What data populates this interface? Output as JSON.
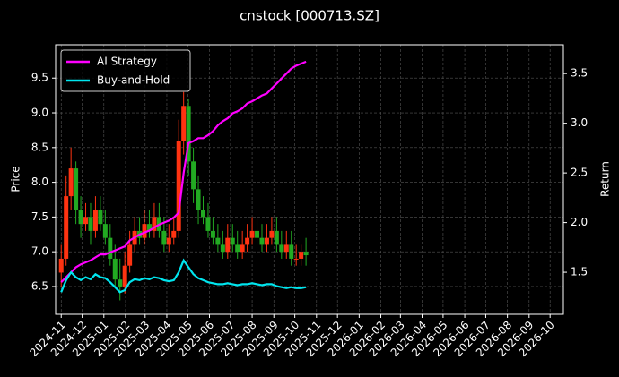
{
  "chart_data": {
    "type": "candlestick",
    "title": "cnstock [000713.SZ]",
    "ylabel": "Price",
    "y2label": "Return",
    "x": [
      "2024-11-01",
      "2024-11-08",
      "2024-11-15",
      "2024-11-22",
      "2024-11-29",
      "2024-12-06",
      "2024-12-13",
      "2024-12-20",
      "2024-12-27",
      "2025-01-03",
      "2025-01-10",
      "2025-01-17",
      "2025-01-24",
      "2025-01-31",
      "2025-02-07",
      "2025-02-14",
      "2025-02-21",
      "2025-02-28",
      "2025-03-07",
      "2025-03-14",
      "2025-03-21",
      "2025-03-28",
      "2025-04-04",
      "2025-04-11",
      "2025-04-18",
      "2025-04-25",
      "2025-05-02",
      "2025-05-09",
      "2025-05-16",
      "2025-05-23",
      "2025-05-30",
      "2025-06-06",
      "2025-06-13",
      "2025-06-20",
      "2025-06-27",
      "2025-07-04",
      "2025-07-11",
      "2025-07-18",
      "2025-07-25",
      "2025-08-01",
      "2025-08-08",
      "2025-08-15",
      "2025-08-22",
      "2025-08-29",
      "2025-09-05",
      "2025-09-12",
      "2025-09-19",
      "2025-09-26",
      "2025-10-03",
      "2025-10-10",
      "2025-10-17"
    ],
    "open": [
      6.7,
      6.9,
      7.8,
      8.2,
      7.6,
      7.4,
      7.5,
      7.3,
      7.6,
      7.4,
      7.2,
      6.9,
      6.6,
      6.5,
      6.8,
      7.1,
      7.3,
      7.2,
      7.4,
      7.3,
      7.5,
      7.3,
      7.1,
      7.2,
      7.3,
      8.6,
      9.1,
      8.3,
      7.9,
      7.6,
      7.5,
      7.3,
      7.2,
      7.1,
      7.0,
      7.2,
      7.1,
      7.0,
      7.1,
      7.2,
      7.3,
      7.2,
      7.1,
      7.2,
      7.3,
      7.1,
      7.0,
      7.1,
      6.9,
      6.9,
      7.0
    ],
    "high": [
      7.1,
      8.1,
      8.5,
      8.3,
      7.8,
      7.7,
      7.7,
      7.8,
      7.8,
      7.6,
      7.4,
      7.1,
      6.9,
      7.0,
      7.3,
      7.5,
      7.5,
      7.6,
      7.6,
      7.7,
      7.7,
      7.5,
      7.4,
      7.5,
      8.9,
      9.3,
      9.2,
      8.5,
      8.1,
      7.8,
      7.7,
      7.5,
      7.4,
      7.3,
      7.4,
      7.4,
      7.3,
      7.3,
      7.4,
      7.5,
      7.5,
      7.4,
      7.4,
      7.5,
      7.5,
      7.3,
      7.3,
      7.3,
      7.1,
      7.1,
      7.2
    ],
    "low": [
      6.5,
      6.8,
      7.6,
      7.4,
      7.2,
      7.3,
      7.1,
      7.2,
      7.3,
      7.1,
      6.8,
      6.5,
      6.3,
      6.4,
      6.7,
      7.0,
      7.1,
      7.1,
      7.2,
      7.2,
      7.2,
      7.0,
      7.0,
      7.1,
      7.2,
      8.4,
      8.1,
      7.7,
      7.4,
      7.4,
      7.2,
      7.1,
      7.0,
      6.9,
      6.9,
      7.0,
      6.9,
      6.9,
      7.0,
      7.1,
      7.1,
      7.0,
      7.0,
      7.1,
      7.0,
      6.9,
      6.9,
      6.8,
      6.8,
      6.8,
      6.8
    ],
    "close": [
      6.9,
      7.8,
      8.2,
      7.6,
      7.4,
      7.5,
      7.3,
      7.6,
      7.4,
      7.2,
      6.9,
      6.6,
      6.5,
      6.8,
      7.1,
      7.3,
      7.2,
      7.4,
      7.3,
      7.5,
      7.3,
      7.1,
      7.2,
      7.3,
      8.6,
      9.1,
      8.3,
      7.9,
      7.6,
      7.5,
      7.3,
      7.2,
      7.1,
      7.0,
      7.2,
      7.1,
      7.0,
      7.1,
      7.2,
      7.3,
      7.2,
      7.1,
      7.2,
      7.3,
      7.1,
      7.0,
      7.1,
      6.9,
      6.9,
      7.0,
      6.95
    ],
    "up_color": "#ff3311",
    "down_color": "#22aa22",
    "series": [
      {
        "name": "AI Strategy",
        "color": "#ff00ff",
        "axis": "y2",
        "values": [
          1.4,
          1.45,
          1.5,
          1.55,
          1.58,
          1.6,
          1.62,
          1.65,
          1.68,
          1.68,
          1.7,
          1.72,
          1.74,
          1.76,
          1.82,
          1.85,
          1.88,
          1.9,
          1.92,
          1.95,
          1.98,
          2.0,
          2.02,
          2.05,
          2.1,
          2.5,
          2.8,
          2.82,
          2.85,
          2.85,
          2.88,
          2.92,
          2.98,
          3.02,
          3.05,
          3.1,
          3.12,
          3.15,
          3.2,
          3.22,
          3.25,
          3.28,
          3.3,
          3.35,
          3.4,
          3.45,
          3.5,
          3.55,
          3.58,
          3.6,
          3.62
        ]
      },
      {
        "name": "Buy-and-Hold",
        "color": "#00e5ee",
        "axis": "y2",
        "values": [
          1.3,
          1.42,
          1.5,
          1.45,
          1.42,
          1.45,
          1.43,
          1.48,
          1.45,
          1.44,
          1.4,
          1.35,
          1.3,
          1.32,
          1.4,
          1.43,
          1.42,
          1.44,
          1.43,
          1.45,
          1.44,
          1.42,
          1.41,
          1.42,
          1.5,
          1.62,
          1.55,
          1.48,
          1.44,
          1.42,
          1.4,
          1.39,
          1.38,
          1.38,
          1.39,
          1.38,
          1.37,
          1.38,
          1.38,
          1.39,
          1.38,
          1.37,
          1.38,
          1.38,
          1.36,
          1.35,
          1.34,
          1.35,
          1.34,
          1.34,
          1.35
        ]
      }
    ],
    "xlim": [
      "2024-10-24",
      "2026-10-20"
    ],
    "xticks": [
      "2024-11",
      "2024-12",
      "2025-01",
      "2025-02",
      "2025-03",
      "2025-04",
      "2025-05",
      "2025-06",
      "2025-07",
      "2025-08",
      "2025-09",
      "2025-10",
      "2025-11",
      "2025-12",
      "2026-01",
      "2026-02",
      "2026-03",
      "2026-04",
      "2026-05",
      "2026-06",
      "2026-07",
      "2026-08",
      "2026-09",
      "2026-10"
    ],
    "ylim": [
      6.1,
      9.98
    ],
    "yticks": [
      6.5,
      {
        "value": 7,
        "label": "7.0"
      },
      7.5,
      {
        "value": 8,
        "label": "8.0"
      },
      8.5,
      {
        "value": 9,
        "label": "9.0"
      },
      9.5
    ],
    "y2lim": [
      1.077,
      3.79
    ],
    "y2ticks": [
      1.5,
      {
        "value": 2,
        "label": "2.0"
      },
      2.5,
      {
        "value": 3,
        "label": "3.0"
      },
      3.5
    ],
    "grid": true,
    "legend": "upper left"
  }
}
